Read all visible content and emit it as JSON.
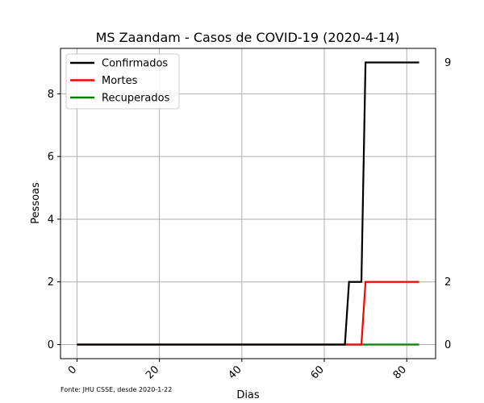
{
  "chart_data": {
    "type": "line",
    "title": "MS Zaandam - Casos de COVID-19 (2020-4-14)",
    "xlabel": "Dias",
    "ylabel": "Pessoas",
    "xlim": [
      -4,
      87
    ],
    "ylim": [
      -0.45,
      9.45
    ],
    "xticks": [
      0,
      20,
      40,
      60,
      80
    ],
    "yticks": [
      0,
      2,
      4,
      6,
      8
    ],
    "grid": true,
    "legend_position": "top-left",
    "footnote": "Fonte: JHU CSSE, desde 2020-1-22",
    "final_value_labels": [
      "9",
      "2",
      "0"
    ],
    "series": [
      {
        "name": "Confirmados",
        "color": "#000000",
        "points": [
          [
            0,
            0
          ],
          [
            65,
            0
          ],
          [
            66,
            2
          ],
          [
            69,
            2
          ],
          [
            70,
            9
          ],
          [
            83,
            9
          ]
        ]
      },
      {
        "name": "Mortes",
        "color": "#ff0000",
        "points": [
          [
            0,
            0
          ],
          [
            69,
            0
          ],
          [
            70,
            2
          ],
          [
            83,
            2
          ]
        ]
      },
      {
        "name": "Recuperados",
        "color": "#008000",
        "points": [
          [
            0,
            0
          ],
          [
            83,
            0
          ]
        ]
      }
    ]
  }
}
